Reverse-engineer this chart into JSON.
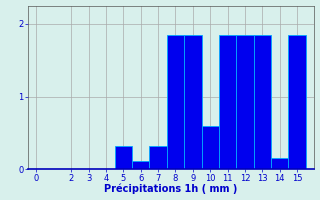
{
  "xlabel": "Précipitations 1h ( mm )",
  "ylabel": "",
  "background_color": "#d8f0ec",
  "bar_color": "#0000ee",
  "grid_color": "#aaaaaa",
  "bar_edge_color": "#00aaff",
  "xlim": [
    -0.5,
    16
  ],
  "ylim": [
    0,
    2.25
  ],
  "yticks": [
    0,
    1,
    2
  ],
  "xticks": [
    0,
    2,
    3,
    4,
    5,
    6,
    7,
    8,
    9,
    10,
    11,
    12,
    13,
    14,
    15
  ],
  "bar_positions": [
    5,
    6,
    7,
    8,
    9,
    10,
    11,
    12,
    13,
    14,
    15
  ],
  "bar_heights": [
    0.32,
    0.12,
    0.32,
    1.85,
    1.85,
    0.6,
    1.85,
    1.85,
    1.85,
    0.15,
    1.85
  ],
  "bar_width": 1.0,
  "tick_fontsize": 6,
  "label_fontsize": 7
}
